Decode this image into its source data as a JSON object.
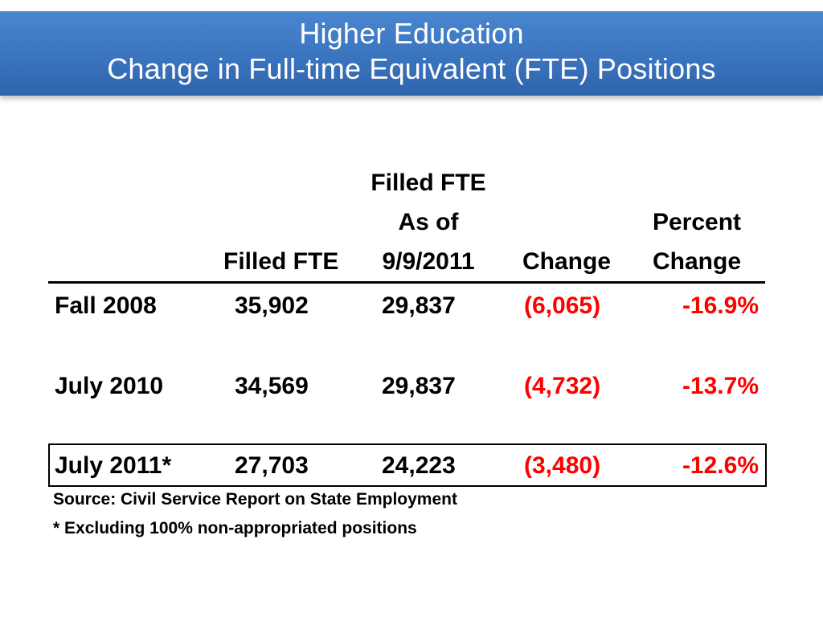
{
  "title": {
    "line1": "Higher Education",
    "line2": "Change in Full-time Equivalent (FTE) Positions"
  },
  "table": {
    "headers": {
      "col1": "Filled FTE",
      "col2_line1": "Filled FTE",
      "col2_line2": "As of",
      "col2_line3": "9/9/2011",
      "col3": "Change",
      "col4_line1": "Percent",
      "col4_line2": "Change"
    },
    "rows": [
      {
        "label": "Fall 2008",
        "filled_fte": "35,902",
        "filled_fte_as_of": "29,837",
        "change": "(6,065)",
        "percent_change": "-16.9%"
      },
      {
        "label": "July 2010",
        "filled_fte": "34,569",
        "filled_fte_as_of": "29,837",
        "change": "(4,732)",
        "percent_change": "-13.7%"
      },
      {
        "label": "July 2011*",
        "filled_fte": "27,703",
        "filled_fte_as_of": "24,223",
        "change": "(3,480)",
        "percent_change": "-12.6%"
      }
    ]
  },
  "notes": {
    "source": "Source:  Civil Service Report on State Employment",
    "footnote": "* Excluding 100% non-appropriated positions"
  },
  "colors": {
    "banner": "#3a74bf",
    "negative": "#ff0000"
  }
}
